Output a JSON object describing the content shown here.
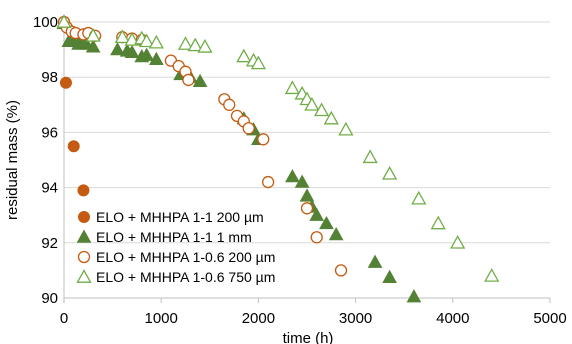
{
  "chart_data": {
    "type": "scatter",
    "xlabel": "time (h)",
    "ylabel": "residual mass (%)",
    "xlim": [
      0,
      5000
    ],
    "ylim": [
      90,
      100
    ],
    "xticks": [
      "0",
      "1000",
      "2000",
      "3000",
      "4000",
      "5000"
    ],
    "yticks": [
      "90",
      "92",
      "94",
      "96",
      "98",
      "100"
    ],
    "grid": "horizontal",
    "legend_position": "bottom-left",
    "series": [
      {
        "name": "ELO + MHHPA 1-1 200 µm",
        "marker": "circle-filled",
        "color": "#C55A11",
        "points": [
          [
            0,
            100.0
          ],
          [
            20,
            97.8
          ],
          [
            100,
            95.5
          ],
          [
            200,
            93.9
          ]
        ]
      },
      {
        "name": "ELO + MHHPA 1-1 1 mm",
        "marker": "triangle-filled",
        "color": "#548235",
        "points": [
          [
            0,
            99.95
          ],
          [
            50,
            99.3
          ],
          [
            100,
            99.3
          ],
          [
            150,
            99.2
          ],
          [
            200,
            99.3
          ],
          [
            230,
            99.2
          ],
          [
            300,
            99.1
          ],
          [
            550,
            99.0
          ],
          [
            650,
            98.95
          ],
          [
            700,
            98.9
          ],
          [
            800,
            98.75
          ],
          [
            850,
            98.8
          ],
          [
            950,
            98.65
          ],
          [
            1200,
            98.1
          ],
          [
            1300,
            98.0
          ],
          [
            1400,
            97.85
          ],
          [
            1850,
            96.5
          ],
          [
            1950,
            96.1
          ],
          [
            2000,
            95.75
          ],
          [
            2350,
            94.4
          ],
          [
            2450,
            94.2
          ],
          [
            2500,
            93.7
          ],
          [
            2550,
            93.3
          ],
          [
            2600,
            93.0
          ],
          [
            2700,
            92.7
          ],
          [
            2800,
            92.3
          ],
          [
            3200,
            91.3
          ],
          [
            3350,
            90.75
          ],
          [
            3600,
            90.05
          ]
        ]
      },
      {
        "name": "ELO + MHHPA 1-0.6 200 µm",
        "marker": "circle-open",
        "color": "#C55A11",
        "points": [
          [
            0,
            100.0
          ],
          [
            30,
            99.8
          ],
          [
            80,
            99.65
          ],
          [
            120,
            99.6
          ],
          [
            200,
            99.55
          ],
          [
            250,
            99.6
          ],
          [
            320,
            99.5
          ],
          [
            600,
            99.45
          ],
          [
            700,
            99.4
          ],
          [
            800,
            99.35
          ],
          [
            1100,
            98.6
          ],
          [
            1180,
            98.4
          ],
          [
            1250,
            98.2
          ],
          [
            1280,
            97.9
          ],
          [
            1650,
            97.2
          ],
          [
            1700,
            97.0
          ],
          [
            1780,
            96.6
          ],
          [
            1850,
            96.4
          ],
          [
            1900,
            96.15
          ],
          [
            2050,
            95.75
          ],
          [
            2100,
            94.2
          ],
          [
            2500,
            93.25
          ],
          [
            2600,
            92.2
          ],
          [
            2850,
            91.0
          ]
        ]
      },
      {
        "name": "ELO + MHHPA 1-0.6 750 µm",
        "marker": "triangle-open",
        "color": "#70AD47",
        "points": [
          [
            0,
            100.0
          ],
          [
            300,
            99.5
          ],
          [
            600,
            99.45
          ],
          [
            700,
            99.35
          ],
          [
            800,
            99.4
          ],
          [
            850,
            99.3
          ],
          [
            950,
            99.25
          ],
          [
            1250,
            99.2
          ],
          [
            1350,
            99.15
          ],
          [
            1450,
            99.1
          ],
          [
            1850,
            98.75
          ],
          [
            1950,
            98.6
          ],
          [
            2000,
            98.5
          ],
          [
            2350,
            97.6
          ],
          [
            2450,
            97.4
          ],
          [
            2500,
            97.2
          ],
          [
            2550,
            97.0
          ],
          [
            2650,
            96.8
          ],
          [
            2750,
            96.5
          ],
          [
            2900,
            96.1
          ],
          [
            3150,
            95.1
          ],
          [
            3350,
            94.5
          ],
          [
            3650,
            93.6
          ],
          [
            3850,
            92.7
          ],
          [
            4050,
            92.0
          ],
          [
            4400,
            90.8
          ]
        ]
      }
    ]
  }
}
